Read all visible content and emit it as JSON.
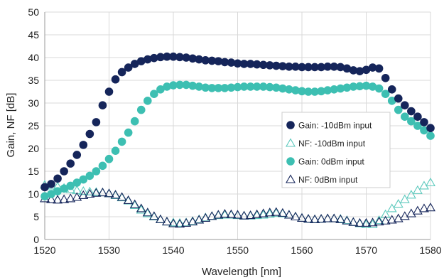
{
  "chart_data": {
    "type": "scatter",
    "title": "",
    "xlabel": "Wavelength [nm]",
    "ylabel": "Gain, NF [dB]",
    "xlim": [
      1520,
      1580
    ],
    "ylim": [
      0,
      50
    ],
    "xticks": [
      1520,
      1530,
      1540,
      1550,
      1560,
      1570,
      1580
    ],
    "yticks": [
      0,
      5,
      10,
      15,
      20,
      25,
      30,
      35,
      40,
      45,
      50
    ],
    "grid": true,
    "legend_position": "right",
    "x": [
      1520,
      1521,
      1522,
      1523,
      1524,
      1525,
      1526,
      1527,
      1528,
      1529,
      1530,
      1531,
      1532,
      1533,
      1534,
      1535,
      1536,
      1537,
      1538,
      1539,
      1540,
      1541,
      1542,
      1543,
      1544,
      1545,
      1546,
      1547,
      1548,
      1549,
      1550,
      1551,
      1552,
      1553,
      1554,
      1555,
      1556,
      1557,
      1558,
      1559,
      1560,
      1561,
      1562,
      1563,
      1564,
      1565,
      1566,
      1567,
      1568,
      1569,
      1570,
      1571,
      1572,
      1573,
      1574,
      1575,
      1576,
      1577,
      1578,
      1579,
      1580
    ],
    "series": [
      {
        "name": "Gain: -10dBm input",
        "marker": "filled-circle",
        "color": "#15255a",
        "values": [
          11.5,
          12.2,
          13.4,
          15.0,
          16.7,
          18.6,
          20.8,
          23.2,
          25.8,
          29.5,
          32.5,
          35.2,
          36.8,
          37.8,
          38.6,
          39.2,
          39.6,
          39.9,
          40.1,
          40.2,
          40.2,
          40.1,
          40.0,
          39.8,
          39.6,
          39.4,
          39.3,
          39.2,
          39.0,
          38.9,
          38.7,
          38.6,
          38.6,
          38.5,
          38.4,
          38.3,
          38.2,
          38.1,
          38.0,
          38.0,
          37.9,
          37.9,
          37.9,
          37.9,
          38.0,
          38.0,
          37.9,
          37.6,
          37.2,
          37.0,
          37.3,
          37.8,
          37.6,
          35.5,
          33.0,
          31.0,
          29.5,
          28.2,
          27.0,
          25.8,
          24.5
        ]
      },
      {
        "name": "NF: -10dBm input",
        "marker": "open-triangle",
        "color": "#5cc9bd",
        "values": [
          12.0,
          11.8,
          11.6,
          11.3,
          11.0,
          10.8,
          10.6,
          10.5,
          10.4,
          10.3,
          10.1,
          9.7,
          9.2,
          8.5,
          7.5,
          6.5,
          5.7,
          5.0,
          4.4,
          3.9,
          3.7,
          3.6,
          3.7,
          4.0,
          4.4,
          4.8,
          5.1,
          5.3,
          5.4,
          5.4,
          5.3,
          5.2,
          5.2,
          5.3,
          5.4,
          5.6,
          5.8,
          5.7,
          5.4,
          5.0,
          4.7,
          4.5,
          4.4,
          4.5,
          4.6,
          4.6,
          4.5,
          4.2,
          3.8,
          3.5,
          3.3,
          3.3,
          4.2,
          5.5,
          6.8,
          7.8,
          8.8,
          9.8,
          10.8,
          11.8,
          12.5
        ]
      },
      {
        "name": "Gain: 0dBm input",
        "marker": "filled-circle",
        "color": "#3dbfb2",
        "values": [
          9.5,
          10.0,
          10.6,
          11.2,
          11.8,
          12.5,
          13.2,
          14.0,
          15.0,
          16.2,
          17.7,
          19.5,
          21.5,
          23.5,
          26.0,
          28.5,
          30.5,
          32.0,
          33.0,
          33.6,
          33.9,
          34.0,
          34.0,
          33.8,
          33.6,
          33.4,
          33.3,
          33.3,
          33.3,
          33.4,
          33.5,
          33.6,
          33.6,
          33.6,
          33.6,
          33.5,
          33.4,
          33.2,
          33.0,
          32.8,
          32.6,
          32.5,
          32.5,
          32.6,
          32.8,
          33.0,
          33.2,
          33.4,
          33.6,
          33.7,
          33.8,
          33.6,
          33.2,
          32.0,
          30.5,
          28.5,
          27.0,
          26.0,
          25.0,
          24.0,
          22.8
        ]
      },
      {
        "name": "NF: 0dBm input",
        "marker": "open-triangle",
        "color": "#15255a",
        "values": [
          9.0,
          8.8,
          8.7,
          8.8,
          9.0,
          9.3,
          9.7,
          10.0,
          10.2,
          10.3,
          10.1,
          9.8,
          9.3,
          8.6,
          7.7,
          6.8,
          5.9,
          5.1,
          4.4,
          3.9,
          3.5,
          3.4,
          3.6,
          3.9,
          4.3,
          4.7,
          5.1,
          5.4,
          5.6,
          5.5,
          5.4,
          5.2,
          5.3,
          5.5,
          5.7,
          5.9,
          6.0,
          5.8,
          5.4,
          5.0,
          4.7,
          4.5,
          4.4,
          4.5,
          4.6,
          4.6,
          4.4,
          4.1,
          3.8,
          3.6,
          3.6,
          3.7,
          3.9,
          4.1,
          4.3,
          4.6,
          5.1,
          5.7,
          6.3,
          6.8,
          7.0
        ]
      }
    ]
  }
}
